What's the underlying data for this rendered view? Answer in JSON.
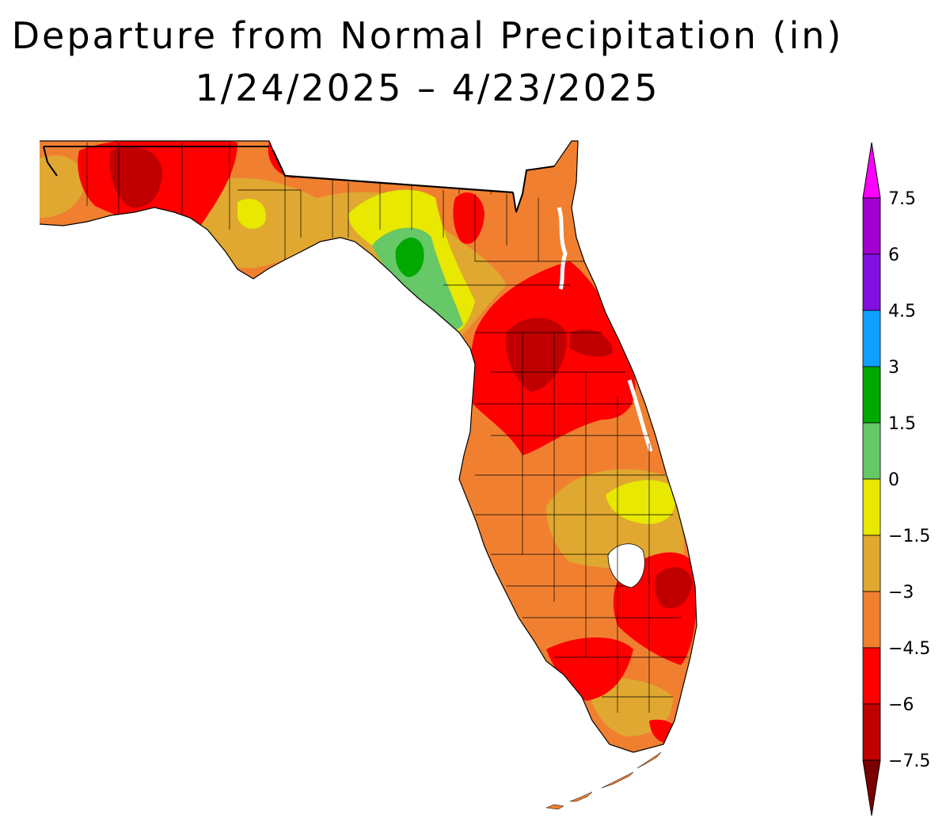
{
  "title": "Departure from Normal Precipitation (in)",
  "subtitle": "1/24/2025 – 4/23/2025",
  "legend": {
    "bins": [
      {
        "from": "below",
        "to": -7.5,
        "color": "#7a0000"
      },
      {
        "from": -7.5,
        "to": -6,
        "color": "#c00000"
      },
      {
        "from": -6,
        "to": -4.5,
        "color": "#ff0000"
      },
      {
        "from": -4.5,
        "to": -3,
        "color": "#f08030"
      },
      {
        "from": -3,
        "to": -1.5,
        "color": "#e0a830"
      },
      {
        "from": -1.5,
        "to": 0,
        "color": "#e8e800"
      },
      {
        "from": 0,
        "to": 1.5,
        "color": "#66c866"
      },
      {
        "from": 1.5,
        "to": 3,
        "color": "#00a800"
      },
      {
        "from": 3,
        "to": 4.5,
        "color": "#10a0ff"
      },
      {
        "from": 4.5,
        "to": 6,
        "color": "#8010e0"
      },
      {
        "from": 6,
        "to": 7.5,
        "color": "#a000d0"
      },
      {
        "from": 7.5,
        "to": "above",
        "color": "#ff00ff"
      }
    ],
    "tick_labels": [
      "7.5",
      "6",
      "4.5",
      "3",
      "1.5",
      "0",
      "−1.5",
      "−3",
      "−4.5",
      "−6",
      "−7.5"
    ]
  },
  "colors": {
    "land_base": "#f08030",
    "water": "#ffffff",
    "outline": "#000000"
  }
}
